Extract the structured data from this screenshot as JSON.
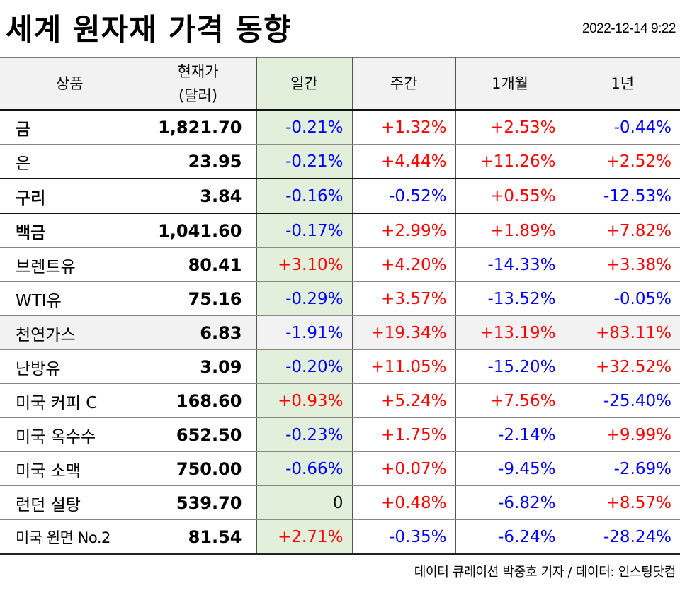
{
  "title": "세계 원자재 가격 동향",
  "timestamp": "2022-12-14 9:22",
  "colors": {
    "up": "#ff0000",
    "down": "#0000ff",
    "header_bg": "#f2f2f2",
    "daily_bg": "#e2efda"
  },
  "table": {
    "headers": {
      "product": "상품",
      "price_line1": "현재가",
      "price_line2": "(달러)",
      "daily": "일간",
      "weekly": "주간",
      "monthly": "1개월",
      "yearly": "1년"
    },
    "rows": [
      {
        "name": "금",
        "price": "1,821.70",
        "daily": "-0.21%",
        "weekly": "+1.32%",
        "monthly": "+2.53%",
        "yearly": "-0.44%"
      },
      {
        "name": "은",
        "price": "23.95",
        "daily": "-0.21%",
        "weekly": "+4.44%",
        "monthly": "+11.26%",
        "yearly": "+2.52%"
      },
      {
        "name": "구리",
        "price": "3.84",
        "daily": "-0.16%",
        "weekly": "-0.52%",
        "monthly": "+0.55%",
        "yearly": "-12.53%"
      },
      {
        "name": "백금",
        "price": "1,041.60",
        "daily": "-0.17%",
        "weekly": "+2.99%",
        "monthly": "+1.89%",
        "yearly": "+7.82%"
      },
      {
        "name": "브렌트유",
        "price": "80.41",
        "daily": "+3.10%",
        "weekly": "+4.20%",
        "monthly": "-14.33%",
        "yearly": "+3.38%"
      },
      {
        "name": "WTI유",
        "price": "75.16",
        "daily": "-0.29%",
        "weekly": "+3.57%",
        "monthly": "-13.52%",
        "yearly": "-0.05%"
      },
      {
        "name": "천연가스",
        "price": "6.83",
        "daily": "-1.91%",
        "weekly": "+19.34%",
        "monthly": "+13.19%",
        "yearly": "+83.11%"
      },
      {
        "name": "난방유",
        "price": "3.09",
        "daily": "-0.20%",
        "weekly": "+11.05%",
        "monthly": "-15.20%",
        "yearly": "+32.52%"
      },
      {
        "name": "미국 커피 C",
        "price": "168.60",
        "daily": "+0.93%",
        "weekly": "+5.24%",
        "monthly": "+7.56%",
        "yearly": "-25.40%"
      },
      {
        "name": "미국 옥수수",
        "price": "652.50",
        "daily": "-0.23%",
        "weekly": "+1.75%",
        "monthly": "-2.14%",
        "yearly": "+9.99%"
      },
      {
        "name": "미국 소맥",
        "price": "750.00",
        "daily": "-0.66%",
        "weekly": "+0.07%",
        "monthly": "-9.45%",
        "yearly": "-2.69%"
      },
      {
        "name": "런던 설탕",
        "price": "539.70",
        "daily": "0",
        "weekly": "+0.48%",
        "monthly": "-6.82%",
        "yearly": "+8.57%"
      },
      {
        "name": "미국 원면 No.2",
        "price": "81.54",
        "daily": "+2.71%",
        "weekly": "-0.35%",
        "monthly": "-6.24%",
        "yearly": "-28.24%"
      }
    ]
  },
  "footer": "데이터 큐레이션 박중호 기자 / 데이터: 인스팅닷컴"
}
